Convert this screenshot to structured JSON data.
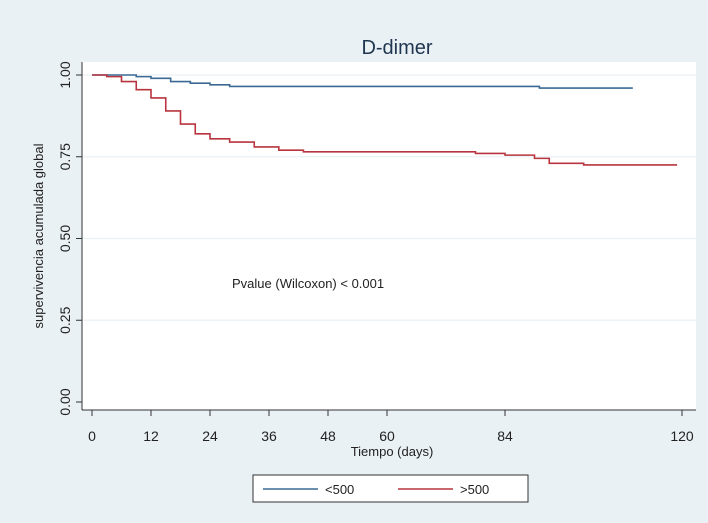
{
  "chart_data": {
    "type": "line",
    "title": "D-dimer",
    "xlabel": "Tiempo (days)",
    "ylabel": "supervivencia acumulada global",
    "xlim": [
      0,
      120
    ],
    "ylim": [
      0,
      1
    ],
    "x_ticks": [
      0,
      12,
      24,
      36,
      48,
      60,
      84,
      120
    ],
    "y_ticks": [
      0,
      0.25,
      0.5,
      0.75,
      1.0
    ],
    "x_tick_labels": [
      "0",
      "12",
      "24",
      "36",
      "48",
      "60",
      "84",
      "120"
    ],
    "y_tick_labels": [
      "0.00",
      "0.25",
      "0.50",
      "0.75",
      "1.00"
    ],
    "grid": true,
    "legend_position": "bottom",
    "annotation": "Pvalue (Wilcoxon) < 0.001",
    "series": [
      {
        "name": "<500",
        "color": "#3a6a93",
        "x": [
          0,
          5,
          9,
          12,
          16,
          20,
          24,
          28,
          40,
          60,
          90,
          91,
          110
        ],
        "y": [
          1.0,
          1.0,
          0.995,
          0.99,
          0.98,
          0.975,
          0.97,
          0.965,
          0.965,
          0.965,
          0.965,
          0.96,
          0.96
        ]
      },
      {
        "name": ">500",
        "color": "#b8353f",
        "x": [
          0,
          3,
          6,
          9,
          12,
          15,
          18,
          21,
          24,
          28,
          33,
          38,
          43,
          50,
          60,
          72,
          78,
          84,
          90,
          93,
          100,
          110,
          119
        ],
        "y": [
          1.0,
          0.995,
          0.98,
          0.955,
          0.93,
          0.89,
          0.85,
          0.82,
          0.805,
          0.795,
          0.78,
          0.77,
          0.765,
          0.765,
          0.765,
          0.765,
          0.76,
          0.755,
          0.745,
          0.73,
          0.725,
          0.725,
          0.725
        ]
      }
    ]
  }
}
